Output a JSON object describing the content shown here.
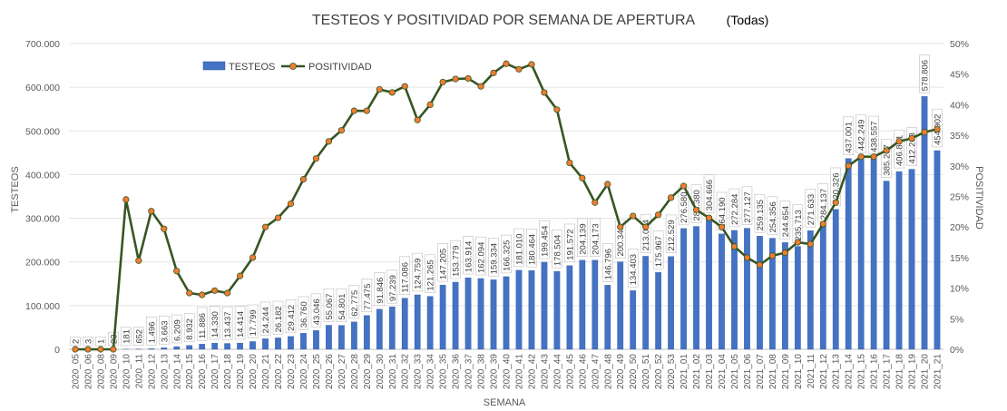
{
  "chart_data": {
    "type": "bar",
    "title": "TESTEOS Y POSITIVIDAD POR SEMANA DE APERTURA",
    "subtitle": "(Todas)",
    "xlabel": "SEMANA",
    "ylabel": "TESTEOS",
    "y2label": "POSITIVIDAD",
    "ylim": [
      0,
      700000
    ],
    "y2lim": [
      0,
      0.5
    ],
    "yticks": [
      "0",
      "100.000",
      "200.000",
      "300.000",
      "400.000",
      "500.000",
      "600.000",
      "700.000"
    ],
    "y2ticks": [
      "0%",
      "5%",
      "10%",
      "15%",
      "20%",
      "25%",
      "30%",
      "35%",
      "40%",
      "45%",
      "50%"
    ],
    "legend_position": "top-left",
    "bar_color": "#4472c4",
    "line_color": "#375623",
    "marker_color": "#ed7d31",
    "categories": [
      "2020_05",
      "2020_06",
      "2020_08",
      "2020_09",
      "2020_10",
      "2020_11",
      "2020_12",
      "2020_13",
      "2020_14",
      "2020_15",
      "2020_16",
      "2020_17",
      "2020_18",
      "2020_19",
      "2020_20",
      "2020_21",
      "2020_22",
      "2020_23",
      "2020_24",
      "2020_25",
      "2020_26",
      "2020_27",
      "2020_28",
      "2020_29",
      "2020_30",
      "2020_31",
      "2020_32",
      "2020_33",
      "2020_34",
      "2020_35",
      "2020_36",
      "2020_37",
      "2020_38",
      "2020_39",
      "2020_40",
      "2020_41",
      "2020_42",
      "2020_43",
      "2020_44",
      "2020_45",
      "2020_46",
      "2020_47",
      "2020_48",
      "2020_49",
      "2020_50",
      "2020_51",
      "2020_52",
      "2020_53",
      "2021_01",
      "2021_02",
      "2021_03",
      "2021_04",
      "2021_05",
      "2021_06",
      "2021_07",
      "2021_08",
      "2021_09",
      "2021_10",
      "2021_11",
      "2021_12",
      "2021_13",
      "2021_14",
      "2021_15",
      "2021_16",
      "2021_17",
      "2021_18",
      "2021_19",
      "2021_20",
      "2021_21"
    ],
    "series": [
      {
        "name": "TESTEOS",
        "kind": "bar",
        "values": [
          2,
          3,
          1,
          23,
          181,
          652,
          1496,
          3663,
          6209,
          8932,
          11886,
          14330,
          13437,
          14414,
          17799,
          24244,
          26182,
          29412,
          36760,
          43046,
          55067,
          54801,
          62775,
          77475,
          91846,
          97239,
          117086,
          124759,
          121265,
          147205,
          153779,
          163914,
          162094,
          159334,
          166325,
          181010,
          180464,
          199454,
          178504,
          191572,
          204139,
          204173,
          146796,
          200341,
          134403,
          213044,
          175967,
          212529,
          276580,
          281380,
          304666,
          264190,
          272284,
          277127,
          259135,
          254356,
          244654,
          235713,
          271633,
          284137,
          320326,
          437001,
          442249,
          438557,
          385207,
          406861,
          412263,
          578806,
          454902
        ],
        "labels": [
          "2",
          "3",
          "1",
          "23",
          "181",
          "652",
          "1.496",
          "3.663",
          "6.209",
          "8.932",
          "11.886",
          "14.330",
          "13.437",
          "14.414",
          "17.799",
          "24.244",
          "26.182",
          "29.412",
          "36.760",
          "43.046",
          "55.067",
          "54.801",
          "62.775",
          "77.475",
          "91.846",
          "97.239",
          "117.086",
          "124.759",
          "121.265",
          "147.205",
          "153.779",
          "163.914",
          "162.094",
          "159.334",
          "166.325",
          "181.010",
          "180.464",
          "199.454",
          "178.504",
          "191.572",
          "204.139",
          "204.173",
          "146.796",
          "200.341",
          "134.403",
          "213.044",
          "175.967",
          "212.529",
          "276.580",
          "281.380",
          "304.666",
          "264.190",
          "272.284",
          "277.127",
          "259.135",
          "254.356",
          "244.654",
          "235.713",
          "271.633",
          "284.137",
          "320.326",
          "437.001",
          "442.249",
          "438.557",
          "385.207",
          "406.861",
          "412.263",
          "578.806",
          "454.902"
        ]
      },
      {
        "name": "POSITIVIDAD",
        "kind": "line",
        "axis": "right",
        "values": [
          0,
          0,
          0,
          0,
          0.245,
          0.145,
          0.226,
          0.197,
          0.128,
          0.092,
          0.089,
          0.096,
          0.092,
          0.12,
          0.15,
          0.2,
          0.215,
          0.238,
          0.278,
          0.312,
          0.34,
          0.358,
          0.39,
          0.39,
          0.425,
          0.42,
          0.43,
          0.375,
          0.4,
          0.437,
          0.442,
          0.443,
          0.43,
          0.452,
          0.467,
          0.458,
          0.466,
          0.42,
          0.392,
          0.305,
          0.28,
          0.24,
          0.27,
          0.2,
          0.218,
          0.2,
          0.22,
          0.248,
          0.267,
          0.228,
          0.215,
          0.2,
          0.168,
          0.15,
          0.138,
          0.153,
          0.158,
          0.175,
          0.172,
          0.205,
          0.24,
          0.3,
          0.315,
          0.315,
          0.325,
          0.34,
          0.345,
          0.355,
          0.36
        ]
      }
    ]
  }
}
